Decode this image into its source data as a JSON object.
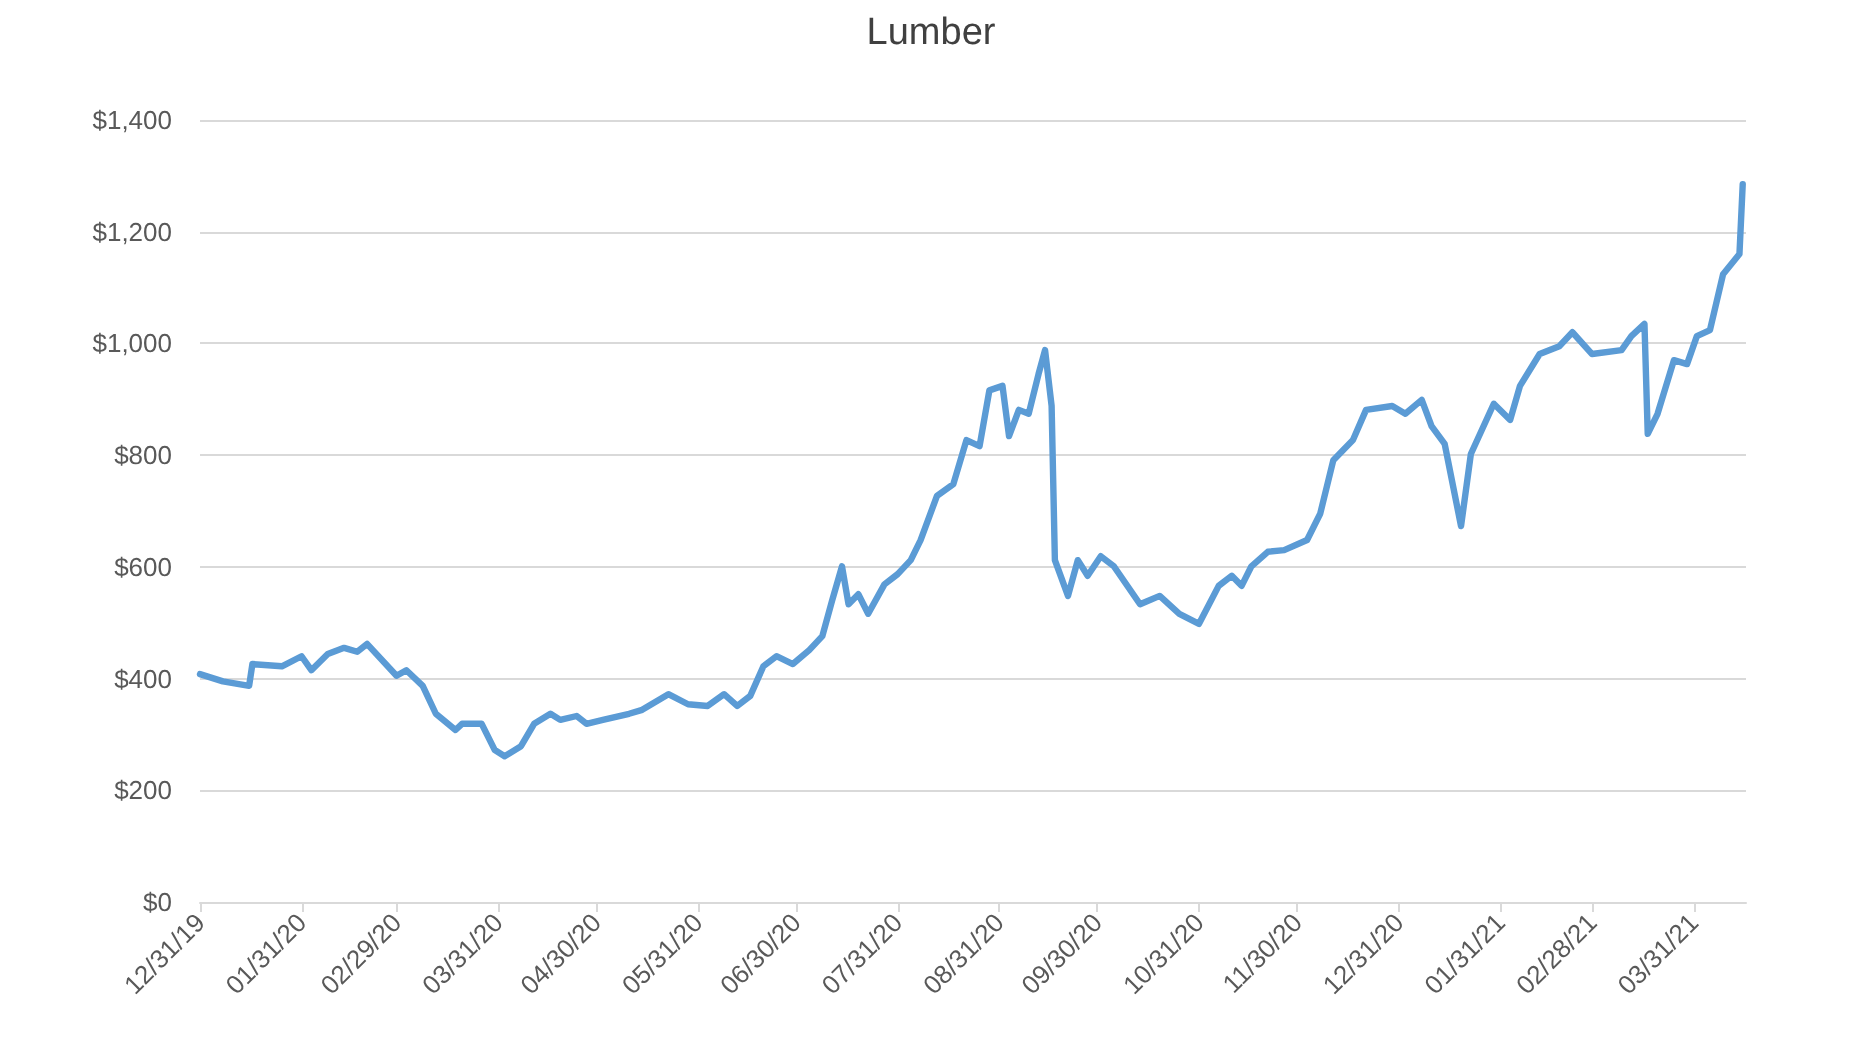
{
  "chart_data": {
    "type": "line",
    "title": "Lumber",
    "grid": "y",
    "marker": "none",
    "line_style": "solid",
    "xlim": [
      "2019-12-31",
      "2021-04-16"
    ],
    "xticks": [
      {
        "value": "2019-12-31",
        "label": "12/31/19"
      },
      {
        "value": "2020-01-31",
        "label": "01/31/20"
      },
      {
        "value": "2020-02-29",
        "label": "02/29/20"
      },
      {
        "value": "2020-03-31",
        "label": "03/31/20"
      },
      {
        "value": "2020-04-30",
        "label": "04/30/20"
      },
      {
        "value": "2020-05-31",
        "label": "05/31/20"
      },
      {
        "value": "2020-06-30",
        "label": "06/30/20"
      },
      {
        "value": "2020-07-31",
        "label": "07/31/20"
      },
      {
        "value": "2020-08-31",
        "label": "08/31/20"
      },
      {
        "value": "2020-09-30",
        "label": "09/30/20"
      },
      {
        "value": "2020-10-31",
        "label": "10/31/20"
      },
      {
        "value": "2020-11-30",
        "label": "11/30/20"
      },
      {
        "value": "2020-12-31",
        "label": "12/31/20"
      },
      {
        "value": "2021-01-31",
        "label": "01/31/21"
      },
      {
        "value": "2021-02-28",
        "label": "02/28/21"
      },
      {
        "value": "2021-03-31",
        "label": "03/31/21"
      }
    ],
    "ylim": [
      0,
      1400
    ],
    "yticks": [
      {
        "value": 0,
        "label": "$0"
      },
      {
        "value": 200,
        "label": "$200"
      },
      {
        "value": 400,
        "label": "$400"
      },
      {
        "value": 600,
        "label": "$600"
      },
      {
        "value": 800,
        "label": "$800"
      },
      {
        "value": 1000,
        "label": "$1,000"
      },
      {
        "value": 1200,
        "label": "$1,200"
      },
      {
        "value": 1400,
        "label": "$1,400"
      }
    ],
    "series": [
      {
        "color": "#5b9bd5",
        "x": [
          "2019-12-31",
          "2020-01-07",
          "2020-01-15",
          "2020-01-16",
          "2020-01-25",
          "2020-01-31",
          "2020-02-03",
          "2020-02-08",
          "2020-02-13",
          "2020-02-17",
          "2020-02-20",
          "2020-02-29",
          "2020-03-03",
          "2020-03-08",
          "2020-03-12",
          "2020-03-18",
          "2020-03-20",
          "2020-03-26",
          "2020-03-30",
          "2020-04-02",
          "2020-04-07",
          "2020-04-11",
          "2020-04-16",
          "2020-04-19",
          "2020-04-24",
          "2020-04-27",
          "2020-05-02",
          "2020-05-10",
          "2020-05-14",
          "2020-05-22",
          "2020-05-28",
          "2020-06-03",
          "2020-06-08",
          "2020-06-12",
          "2020-06-16",
          "2020-06-20",
          "2020-06-24",
          "2020-06-29",
          "2020-07-04",
          "2020-07-08",
          "2020-07-11",
          "2020-07-14",
          "2020-07-16",
          "2020-07-19",
          "2020-07-22",
          "2020-07-27",
          "2020-07-31",
          "2020-08-04",
          "2020-08-07",
          "2020-08-12",
          "2020-08-17",
          "2020-08-21",
          "2020-08-25",
          "2020-08-28",
          "2020-09-01",
          "2020-09-03",
          "2020-09-06",
          "2020-09-09",
          "2020-09-12",
          "2020-09-14",
          "2020-09-16",
          "2020-09-17",
          "2020-09-21",
          "2020-09-24",
          "2020-09-27",
          "2020-10-01",
          "2020-10-05",
          "2020-10-13",
          "2020-10-19",
          "2020-10-25",
          "2020-10-31",
          "2020-11-06",
          "2020-11-10",
          "2020-11-13",
          "2020-11-16",
          "2020-11-21",
          "2020-11-26",
          "2020-12-03",
          "2020-12-07",
          "2020-12-11",
          "2020-12-17",
          "2020-12-21",
          "2020-12-29",
          "2021-01-02",
          "2021-01-07",
          "2021-01-10",
          "2021-01-14",
          "2021-01-19",
          "2021-01-22",
          "2021-01-29",
          "2021-02-03",
          "2021-02-06",
          "2021-02-12",
          "2021-02-18",
          "2021-02-22",
          "2021-02-28",
          "2021-03-09",
          "2021-03-12",
          "2021-03-16",
          "2021-03-17",
          "2021-03-20",
          "2021-03-25",
          "2021-03-29",
          "2021-04-01",
          "2021-04-05",
          "2021-04-09",
          "2021-04-14",
          "2021-04-15"
        ],
        "values": [
          408,
          395,
          387,
          426,
          422,
          440,
          415,
          444,
          455,
          448,
          462,
          405,
          415,
          387,
          337,
          308,
          319,
          319,
          272,
          261,
          279,
          319,
          337,
          326,
          333,
          319,
          326,
          337,
          344,
          372,
          354,
          351,
          372,
          351,
          369,
          422,
          440,
          426,
          451,
          476,
          540,
          601,
          533,
          551,
          516,
          569,
          587,
          612,
          648,
          727,
          748,
          827,
          816,
          916,
          924,
          834,
          881,
          874,
          945,
          988,
          888,
          612,
          548,
          612,
          584,
          619,
          601,
          533,
          548,
          516,
          498,
          566,
          584,
          566,
          601,
          627,
          630,
          648,
          695,
          791,
          827,
          881,
          888,
          874,
          899,
          852,
          820,
          673,
          802,
          892,
          863,
          924,
          981,
          995,
          1020,
          981,
          988,
          1013,
          1035,
          838,
          874,
          970,
          963,
          1013,
          1024,
          1124,
          1160,
          1285
        ]
      }
    ]
  }
}
